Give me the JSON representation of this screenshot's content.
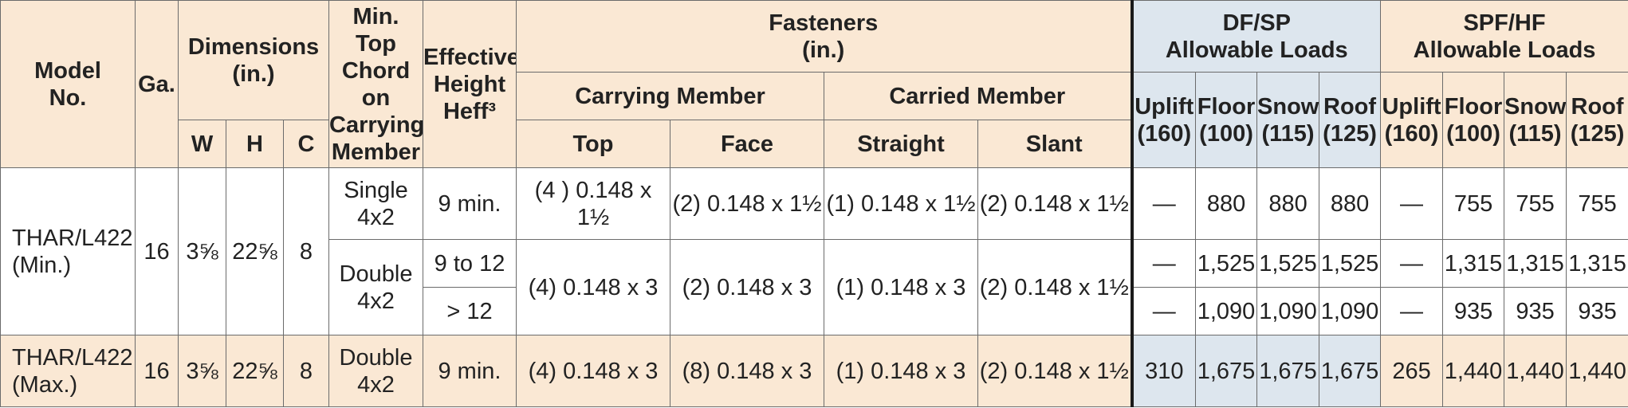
{
  "headers": {
    "model_no": "Model\nNo.",
    "ga": "Ga.",
    "dimensions": "Dimensions\n(in.)",
    "w": "W",
    "h": "H",
    "c": "C",
    "min_top_chord": "Min. Top\nChord on\nCarrying\nMember",
    "effective_height": "Effective\nHeight\nHeff³",
    "fasteners": "Fasteners\n(in.)",
    "carrying_member": "Carrying Member",
    "carried_member": "Carried Member",
    "top": "Top",
    "face": "Face",
    "straight": "Straight",
    "slant": "Slant",
    "df_sp": "DF/SP\nAllowable Loads",
    "spf_hf": "SPF/HF\nAllowable Loads",
    "uplift": "Uplift\n(160)",
    "floor": "Floor\n(100)",
    "snow": "Snow\n(115)",
    "roof": "Roof\n(125)"
  },
  "rows": {
    "min": {
      "model": "THAR/L422\n(Min.)",
      "ga": "16",
      "w": "3⅝",
      "h": "22⅝",
      "c": "8",
      "single": {
        "chord": "Single\n4x2",
        "heff": "9 min.",
        "top": "(4 ) 0.148 x 1½",
        "face": "(2) 0.148 x 1½",
        "straight": "(1) 0.148 x 1½",
        "slant": "(2) 0.148 x 1½",
        "df": [
          "—",
          "880",
          "880",
          "880"
        ],
        "spf": [
          "—",
          "755",
          "755",
          "755"
        ]
      },
      "double": {
        "chord": "Double\n4x2",
        "top": "(4) 0.148 x 3",
        "face": "(2) 0.148 x 3",
        "straight": "(1) 0.148 x 3",
        "slant": "(2) 0.148 x 1½",
        "a": {
          "heff": "9 to 12",
          "df": [
            "—",
            "1,525",
            "1,525",
            "1,525"
          ],
          "spf": [
            "—",
            "1,315",
            "1,315",
            "1,315"
          ]
        },
        "b": {
          "heff": "> 12",
          "df": [
            "—",
            "1,090",
            "1,090",
            "1,090"
          ],
          "spf": [
            "—",
            "935",
            "935",
            "935"
          ]
        }
      }
    },
    "max": {
      "model": "THAR/L422\n(Max.)",
      "ga": "16",
      "w": "3⅝",
      "h": "22⅝",
      "c": "8",
      "chord": "Double\n4x2",
      "heff": "9 min.",
      "top": "(4) 0.148 x 3",
      "face": "(8) 0.148 x 3",
      "straight": "(1) 0.148 x 3",
      "slant": "(2) 0.148 x 1½",
      "df": [
        "310",
        "1,675",
        "1,675",
        "1,675"
      ],
      "spf": [
        "265",
        "1,440",
        "1,440",
        "1,440"
      ]
    }
  }
}
